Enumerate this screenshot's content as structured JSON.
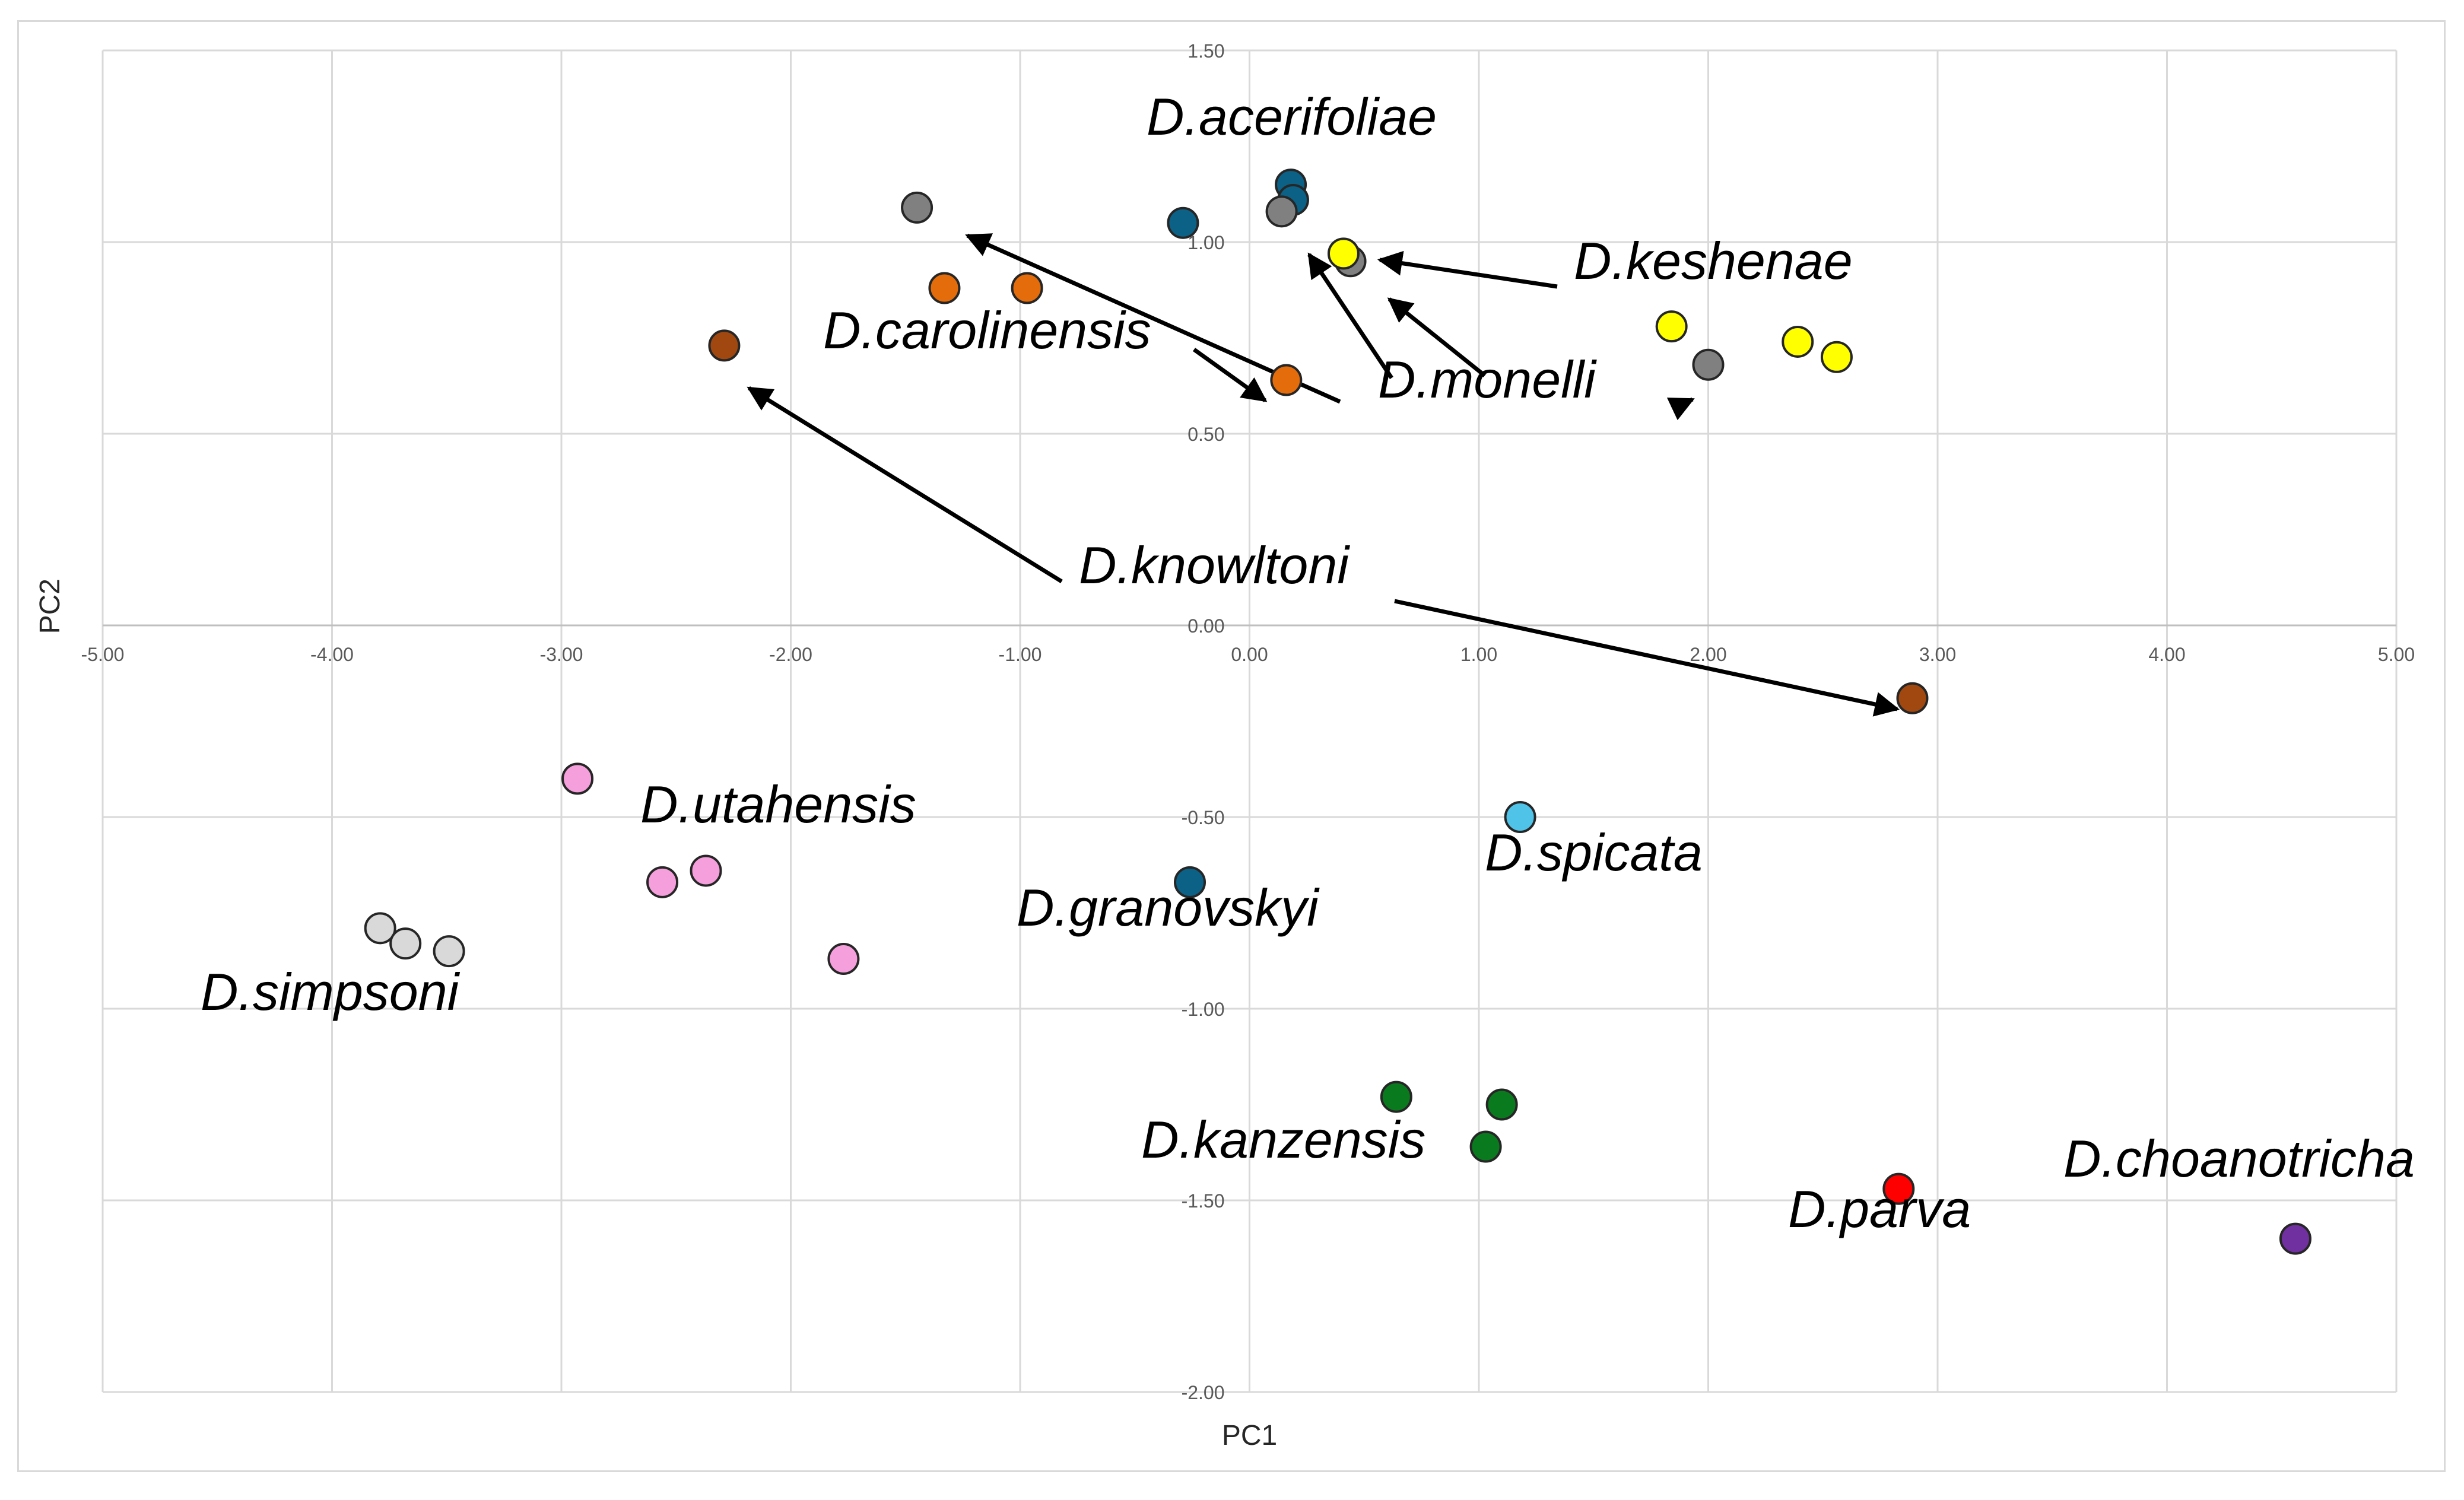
{
  "chart_data": {
    "type": "scatter",
    "title": "",
    "xlabel": "PC1",
    "ylabel": "PC2",
    "xlim": [
      -5,
      5
    ],
    "ylim": [
      -2,
      1.5
    ],
    "x_ticks": [
      -5,
      -4,
      -3,
      -2,
      -1,
      0,
      1,
      2,
      3,
      4,
      5
    ],
    "y_ticks": [
      1.5,
      1.0,
      0.5,
      0.0,
      -0.5,
      -1.0,
      -1.5,
      -2.0
    ],
    "x_tick_labels": [
      "-5.00",
      "-4.00",
      "-3.00",
      "-2.00",
      "-1.00",
      "0.00",
      "1.00",
      "2.00",
      "3.00",
      "4.00",
      "5.00"
    ],
    "y_tick_labels": [
      "1.50",
      "1.00",
      "0.50",
      "0.00",
      "-0.50",
      "-1.00",
      "-1.50",
      "-2.00"
    ],
    "grid": true,
    "series": [
      {
        "name": "D.acerifoliae",
        "color": "#0b6186",
        "points": [
          [
            0.18,
            1.15
          ],
          [
            0.19,
            1.11
          ],
          [
            -0.29,
            1.05
          ]
        ]
      },
      {
        "name": "D.monelli",
        "color": "#808080",
        "points": [
          [
            -1.45,
            1.09
          ],
          [
            0.14,
            1.08
          ],
          [
            0.44,
            0.95
          ],
          [
            2.0,
            0.68
          ]
        ]
      },
      {
        "name": "D.keshenae",
        "color": "#ffff00",
        "points": [
          [
            0.41,
            0.97
          ],
          [
            1.84,
            0.78
          ],
          [
            2.39,
            0.74
          ],
          [
            2.56,
            0.7
          ]
        ]
      },
      {
        "name": "D.carolinensis",
        "color": "#e46c0a",
        "points": [
          [
            -1.33,
            0.88
          ],
          [
            -0.97,
            0.88
          ],
          [
            0.16,
            0.64
          ]
        ]
      },
      {
        "name": "D.knowltoni",
        "color": "#a0480f",
        "points": [
          [
            -2.29,
            0.73
          ],
          [
            2.89,
            -0.19
          ]
        ]
      },
      {
        "name": "D.utahensis",
        "color": "#f5a0dc",
        "points": [
          [
            -2.93,
            -0.4
          ],
          [
            -2.56,
            -0.67
          ],
          [
            -2.37,
            -0.64
          ],
          [
            -1.77,
            -0.87
          ]
        ]
      },
      {
        "name": "D.simpsoni",
        "color": "#d9d9d9",
        "points": [
          [
            -3.79,
            -0.79
          ],
          [
            -3.68,
            -0.83
          ],
          [
            -3.49,
            -0.85
          ]
        ]
      },
      {
        "name": "D.granovskyi",
        "color": "#0b6186",
        "points": [
          [
            -0.26,
            -0.67
          ]
        ]
      },
      {
        "name": "D.spicata",
        "color": "#4fc3e8",
        "points": [
          [
            1.18,
            -0.5
          ]
        ]
      },
      {
        "name": "D.kanzensis",
        "color": "#0a7a1f",
        "points": [
          [
            0.64,
            -1.23
          ],
          [
            1.1,
            -1.25
          ],
          [
            1.03,
            -1.36
          ]
        ]
      },
      {
        "name": "D.parva",
        "color": "#ff0000",
        "points": [
          [
            2.83,
            -1.47
          ]
        ]
      },
      {
        "name": "D.choanotricha",
        "color": "#7030a0",
        "points": [
          [
            4.56,
            -1.6
          ]
        ]
      }
    ],
    "annotations": [
      {
        "text": "D.acerifoliae"
      },
      {
        "text": "D.keshenae"
      },
      {
        "text": "D.carolinensis"
      },
      {
        "text": "D.monelli"
      },
      {
        "text": "D.knowltoni"
      },
      {
        "text": "D.utahensis"
      },
      {
        "text": "D.simpsoni"
      },
      {
        "text": "D.granovskyi"
      },
      {
        "text": "D.spicata"
      },
      {
        "text": "D.kanzensis"
      },
      {
        "text": "D.parva"
      },
      {
        "text": "D.choanotricha"
      }
    ]
  }
}
